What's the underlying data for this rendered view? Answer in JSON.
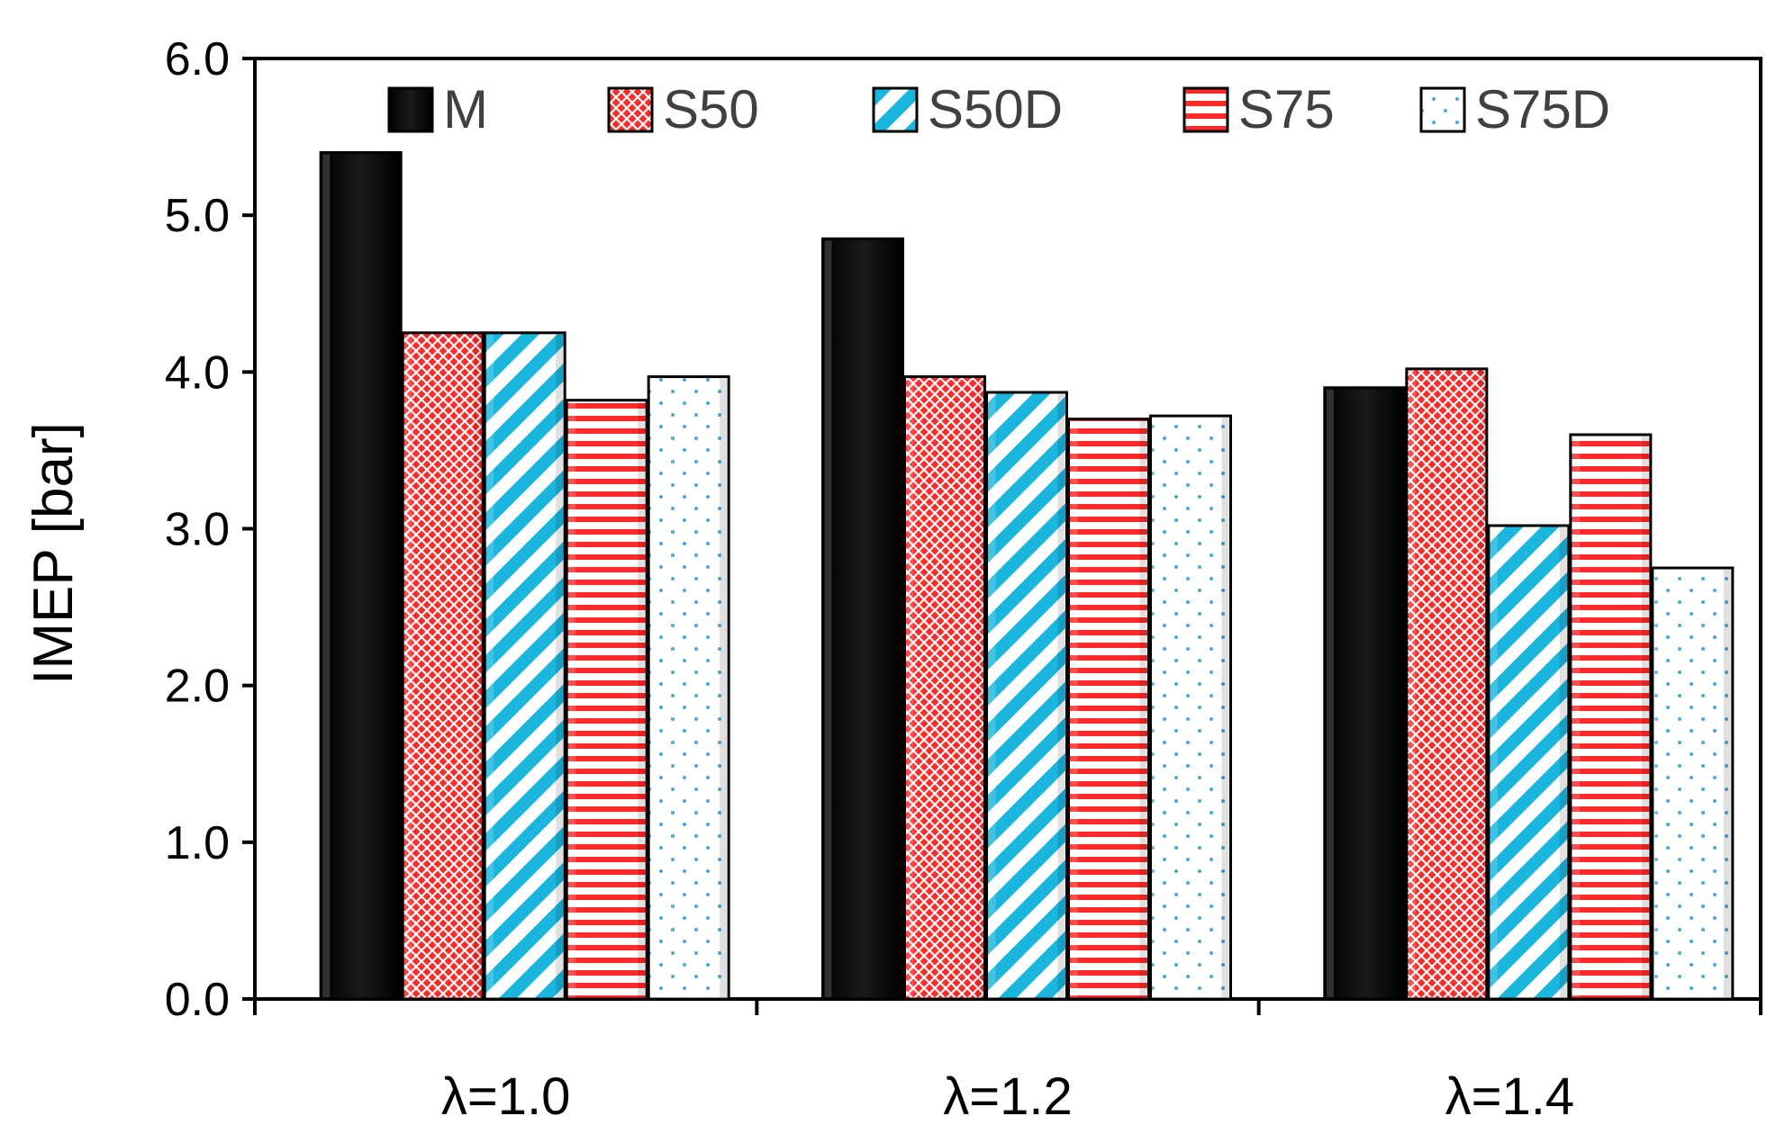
{
  "chart_data": {
    "type": "bar",
    "title": "",
    "xlabel": "",
    "ylabel": "IMEP [bar]",
    "ylim": [
      0,
      6
    ],
    "yticks": [
      "0.0",
      "1.0",
      "2.0",
      "3.0",
      "4.0",
      "5.0",
      "6.0"
    ],
    "categories": [
      "λ=1.0",
      "λ=1.2",
      "λ=1.4"
    ],
    "legend_position": "top",
    "grid": false,
    "series": [
      {
        "name": "M",
        "pattern": "solid",
        "color": "#000000",
        "values": [
          5.4,
          4.85,
          3.9
        ]
      },
      {
        "name": "S50",
        "pattern": "crosshatch",
        "color": "#ff2a2a",
        "values": [
          4.25,
          3.97,
          4.02
        ]
      },
      {
        "name": "S50D",
        "pattern": "diagonal",
        "color": "#1ab6de",
        "values": [
          4.25,
          3.87,
          3.02
        ]
      },
      {
        "name": "S75",
        "pattern": "horizontal",
        "color": "#ff2a2a",
        "values": [
          3.82,
          3.7,
          3.6
        ]
      },
      {
        "name": "S75D",
        "pattern": "dots",
        "color": "#4aa8e0",
        "values": [
          3.97,
          3.72,
          2.75
        ]
      }
    ]
  }
}
